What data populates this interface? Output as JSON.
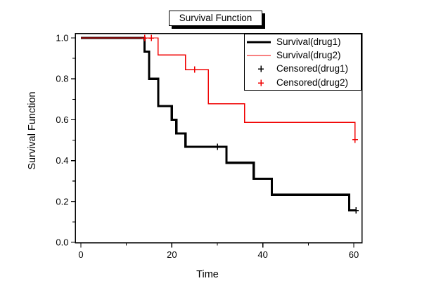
{
  "title": "Survival Function",
  "colors": {
    "background": "#ffffff",
    "frame": "#000000",
    "drug1": "#000000",
    "drug2": "#f00000"
  },
  "chart_data": {
    "type": "line",
    "subtype": "kaplan-meier-step",
    "title": "Survival Function",
    "xlabel": "Time",
    "ylabel": "Survival Function",
    "xlim": [
      -1.3,
      61.8
    ],
    "ylim": [
      0,
      1.02
    ],
    "grid": false,
    "legend_position": "top-right-inside",
    "x_ticks": [
      0,
      20,
      40,
      60
    ],
    "x_tick_labels": [
      "0",
      "20",
      "40",
      "60"
    ],
    "x_minor_ticks": [
      10,
      30,
      50
    ],
    "y_ticks": [
      0.0,
      0.2,
      0.4,
      0.6,
      0.8,
      1.0
    ],
    "y_tick_labels": [
      "0.0",
      "0.2",
      "0.4",
      "0.6",
      "0.8",
      "1.0"
    ],
    "y_minor_ticks": [
      0.1,
      0.3,
      0.5,
      0.7,
      0.9
    ],
    "series": [
      {
        "name": "Survival(drug1)",
        "color": "#000000",
        "line_width": 3.2,
        "steps": [
          [
            0,
            1.0
          ],
          [
            14,
            0.933
          ],
          [
            15,
            0.8
          ],
          [
            17,
            0.667
          ],
          [
            20,
            0.6
          ],
          [
            21,
            0.533
          ],
          [
            23,
            0.467
          ],
          [
            32,
            0.389
          ],
          [
            38,
            0.311
          ],
          [
            42,
            0.233
          ],
          [
            59,
            0.156
          ]
        ],
        "end_time": 60.5
      },
      {
        "name": "Survival(drug2)",
        "color": "#f00000",
        "line_width": 1.4,
        "steps": [
          [
            0,
            1.0
          ],
          [
            17,
            0.917
          ],
          [
            23,
            0.845
          ],
          [
            28,
            0.678
          ],
          [
            36,
            0.587
          ],
          [
            60.3,
            0.502
          ]
        ],
        "end_time": 60.3
      }
    ],
    "censored_series": [
      {
        "name": "Censored(drug1)",
        "color": "#000000",
        "points": [
          [
            30,
            0.467
          ],
          [
            60.5,
            0.156
          ]
        ]
      },
      {
        "name": "Censored(drug2)",
        "color": "#f00000",
        "points": [
          [
            14,
            1.0
          ],
          [
            15.5,
            1.0
          ],
          [
            25,
            0.845
          ],
          [
            60.3,
            0.502
          ]
        ]
      }
    ],
    "legend_items": [
      {
        "label": "Survival(drug1)",
        "color": "#000000",
        "sample": "line",
        "thickness": 3.2
      },
      {
        "label": "Survival(drug2)",
        "color": "#f00000",
        "sample": "line",
        "thickness": 1.4
      },
      {
        "label": "Censored(drug1)",
        "color": "#000000",
        "sample": "plus",
        "thickness": 1.5
      },
      {
        "label": "Censored(drug2)",
        "color": "#f00000",
        "sample": "plus",
        "thickness": 1.5
      }
    ]
  }
}
